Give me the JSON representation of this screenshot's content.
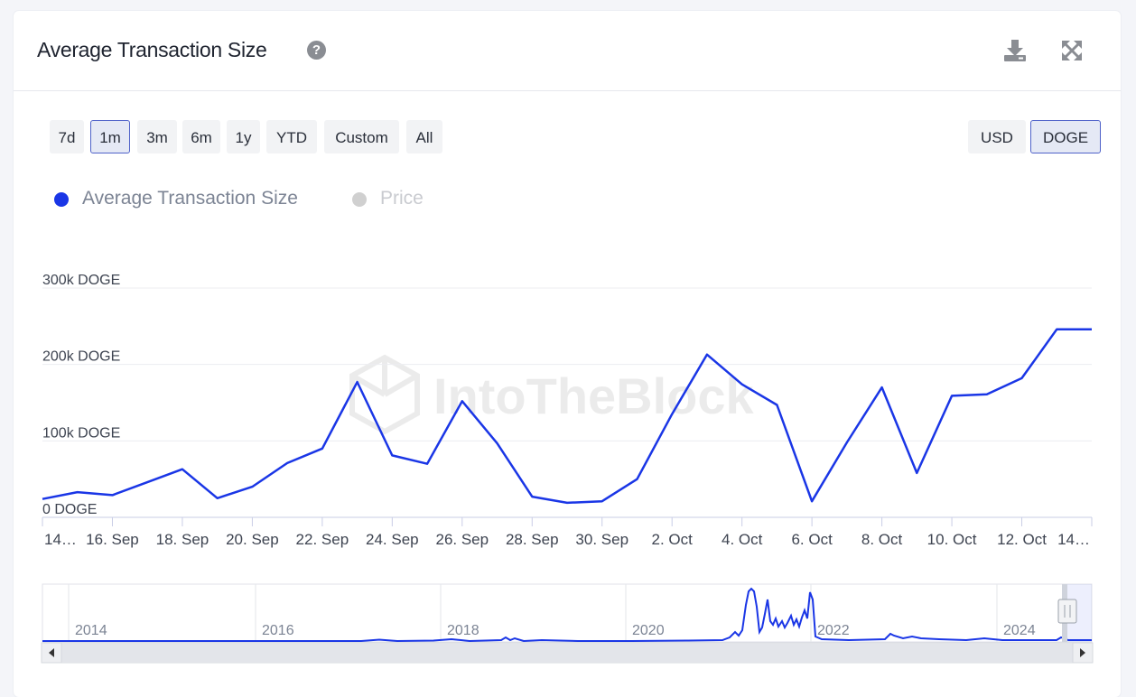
{
  "header": {
    "title": "Average Transaction Size",
    "help_icon": "question-circle-icon",
    "download_icon": "download-icon",
    "expand_icon": "expand-icon"
  },
  "range_buttons": [
    {
      "label": "7d",
      "active": false
    },
    {
      "label": "1m",
      "active": true
    },
    {
      "label": "3m",
      "active": false
    },
    {
      "label": "6m",
      "active": false
    },
    {
      "label": "1y",
      "active": false
    },
    {
      "label": "YTD",
      "active": false
    },
    {
      "label": "Custom",
      "active": false
    },
    {
      "label": "All",
      "active": false
    }
  ],
  "currency_buttons": [
    {
      "label": "USD",
      "active": false
    },
    {
      "label": "DOGE",
      "active": true
    }
  ],
  "legend": [
    {
      "label": "Average Transaction Size",
      "color": "#1a36e6",
      "enabled": true
    },
    {
      "label": "Price",
      "color": "#c8c8c8",
      "enabled": false
    }
  ],
  "watermark": "IntoTheBlock",
  "colors": {
    "series": "#1a36e6",
    "accent_border": "#4f62c9"
  },
  "chart_data": {
    "type": "line",
    "y_ticks": [
      {
        "value": 0,
        "label": "0 DOGE"
      },
      {
        "value": 100000,
        "label": "100k DOGE"
      },
      {
        "value": 200000,
        "label": "200k DOGE"
      },
      {
        "value": 300000,
        "label": "300k DOGE"
      }
    ],
    "ylim": [
      0,
      300000
    ],
    "x_tick_labels": [
      "14…",
      "16. Sep",
      "18. Sep",
      "20. Sep",
      "22. Sep",
      "24. Sep",
      "26. Sep",
      "28. Sep",
      "30. Sep",
      "2. Oct",
      "4. Oct",
      "6. Oct",
      "8. Oct",
      "10. Oct",
      "12. Oct",
      "14…"
    ],
    "series": [
      {
        "name": "Average Transaction Size",
        "x": [
          "2024-09-14",
          "2024-09-15",
          "2024-09-16",
          "2024-09-17",
          "2024-09-18",
          "2024-09-19",
          "2024-09-20",
          "2024-09-21",
          "2024-09-22",
          "2024-09-23",
          "2024-09-24",
          "2024-09-25",
          "2024-09-26",
          "2024-09-27",
          "2024-09-28",
          "2024-09-29",
          "2024-09-30",
          "2024-10-01",
          "2024-10-02",
          "2024-10-03",
          "2024-10-04",
          "2024-10-05",
          "2024-10-06",
          "2024-10-07",
          "2024-10-08",
          "2024-10-09",
          "2024-10-10",
          "2024-10-11",
          "2024-10-12",
          "2024-10-13",
          "2024-10-14"
        ],
        "values": [
          24000,
          33000,
          29000,
          46000,
          63000,
          25000,
          40000,
          71000,
          90000,
          177000,
          81000,
          70000,
          152000,
          97000,
          27000,
          19000,
          21000,
          50000,
          135000,
          213000,
          174000,
          147000,
          21000,
          98000,
          170000,
          58000,
          159000,
          161000,
          182000,
          246000,
          246000
        ]
      }
    ],
    "navigator": {
      "x_tick_labels": [
        "2014",
        "2016",
        "2018",
        "2020",
        "2022",
        "2024"
      ]
    }
  }
}
